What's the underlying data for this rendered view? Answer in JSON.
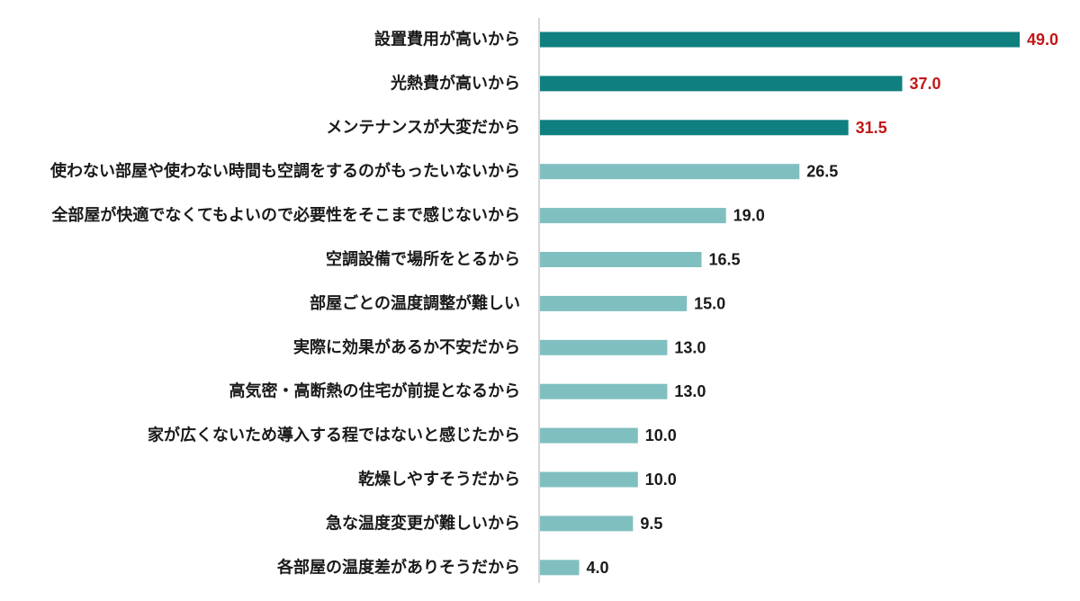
{
  "chart_data": {
    "type": "bar",
    "orientation": "horizontal",
    "title": "",
    "xlabel": "",
    "ylabel": "",
    "xlim": [
      0,
      50
    ],
    "grid": false,
    "legend": "none",
    "categories": [
      "設置費用が高いから",
      "光熱費が高いから",
      "メンテナンスが大変だから",
      "使わない部屋や使わない時間も空調をするのがもったいないから",
      "全部屋が快適でなくてもよいので必要性をそこまで感じないから",
      "空調設備で場所をとるから",
      "部屋ごとの温度調整が難しい",
      "実際に効果があるか不安だから",
      "高気密・高断熱の住宅が前提となるから",
      "家が広くないため導入する程ではないと感じたから",
      "乾燥しやすそうだから",
      "急な温度変更が難しいから",
      "各部屋の温度差がありそうだから"
    ],
    "values": [
      49.0,
      37.0,
      31.5,
      26.5,
      19.0,
      16.5,
      15.0,
      13.0,
      13.0,
      10.0,
      10.0,
      9.5,
      4.0
    ],
    "value_labels": [
      "49.0",
      "37.0",
      "31.5",
      "26.5",
      "19.0",
      "16.5",
      "15.0",
      "13.0",
      "13.0",
      "10.0",
      "10.0",
      "9.5",
      "4.0"
    ],
    "highlight_top_n": 3,
    "colors": {
      "highlight_bar": "#0f7f7f",
      "normal_bar": "#7fbfc0",
      "highlight_value": "#c01818",
      "normal_value": "#1a1a1a",
      "axis_line": "#c8c8c8"
    }
  }
}
